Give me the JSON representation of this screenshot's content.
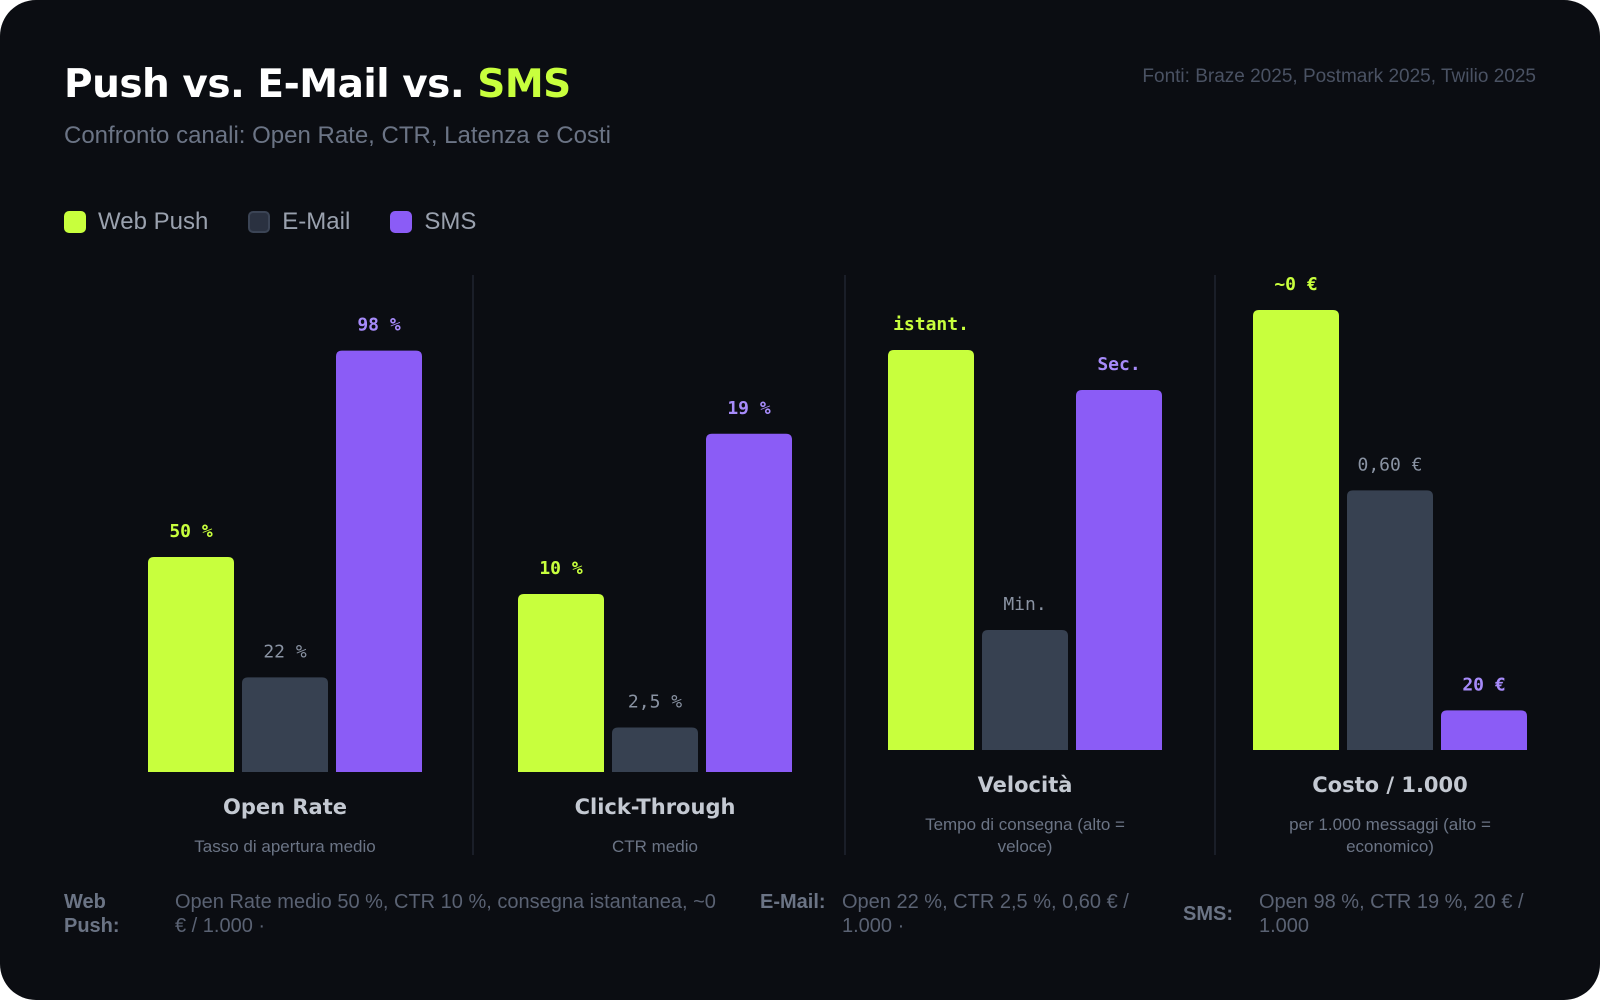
{
  "header": {
    "title_main": "Push vs. E-Mail vs. ",
    "title_accent": "SMS",
    "subtitle": "Confronto canali: Open Rate, CTR, Latenza e Costi",
    "sources": "Fonti: Braze 2025, Postmark 2025, Twilio 2025"
  },
  "colors": {
    "background": "#0b0d12",
    "accent": "#c8ff3d",
    "web_push": "#c8ff3d",
    "email": "#374151",
    "email_label": "#8a93a3",
    "sms": "#8b5cf6",
    "sms_label": "#a78bfa",
    "divider": "#1f2430",
    "category_title": "#c4c9d2",
    "category_subtitle": "#6b7485"
  },
  "legend": [
    {
      "label": "Web Push",
      "color": "#c8ff3d"
    },
    {
      "label": "E-Mail",
      "color": "#374151"
    },
    {
      "label": "SMS",
      "color": "#8b5cf6"
    }
  ],
  "chart_data": {
    "type": "bar",
    "series": [
      {
        "name": "Web Push"
      },
      {
        "name": "E-Mail"
      },
      {
        "name": "SMS"
      }
    ],
    "groups": [
      {
        "title": "Open Rate",
        "subtitle": "Tasso di apertura medio",
        "unit": "%",
        "ylim": [
          0,
          100
        ],
        "values": [
          50,
          22,
          98
        ],
        "labels": [
          "50 %",
          "22 %",
          "98 %"
        ]
      },
      {
        "title": "Click-Through",
        "subtitle": "CTR medio",
        "unit": "%",
        "ylim": [
          0,
          25
        ],
        "values": [
          10,
          2.5,
          19
        ],
        "labels": [
          "10 %",
          "2,5 %",
          "19 %"
        ]
      },
      {
        "title": "Velocità",
        "subtitle": "Tempo di consegna (alto = veloce)",
        "unit": "relative score",
        "ylim": [
          0,
          100
        ],
        "values": [
          100,
          30,
          90
        ],
        "labels": [
          "istant.",
          "Min.",
          "Sec."
        ]
      },
      {
        "title": "Costo / 1.000",
        "subtitle": "per 1.000 messaggi (alto = economico)",
        "unit": "relative score",
        "ylim": [
          0,
          100
        ],
        "values": [
          100,
          59,
          9
        ],
        "labels": [
          "~0 €",
          "0,60 €",
          "20 €"
        ]
      }
    ]
  },
  "footer": [
    {
      "label": "Web Push:",
      "text": "Open Rate medio 50 %, CTR 10 %, consegna istantanea, ~0 € / 1.000  ·"
    },
    {
      "label": "E-Mail:",
      "text": "Open 22 %, CTR 2,5 %, 0,60 € / 1.000  ·"
    },
    {
      "label": "SMS:",
      "text": "Open 98 %, CTR 19 %, 20 € / 1.000"
    }
  ]
}
